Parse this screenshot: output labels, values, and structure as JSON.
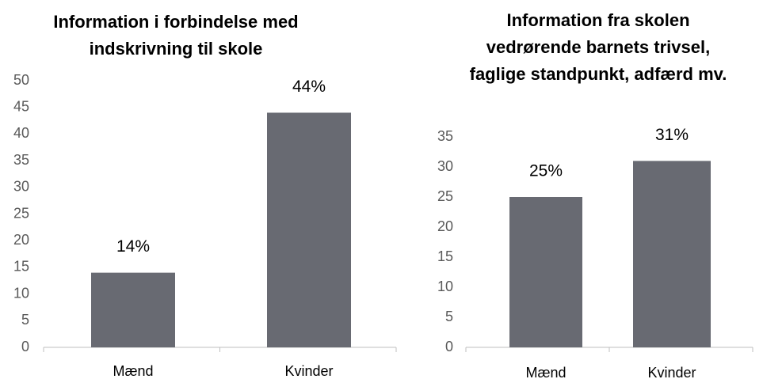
{
  "chart_data": [
    {
      "type": "bar",
      "title": "Information i forbindelse med indskrivning til skole",
      "categories": [
        "Mænd",
        "Kvinder"
      ],
      "values": [
        14,
        44
      ],
      "value_labels": [
        "14%",
        "44%"
      ],
      "color": "#686a72",
      "ylim": [
        0,
        50
      ],
      "yticks": [
        0,
        5,
        10,
        15,
        20,
        25,
        30,
        35,
        40,
        45,
        50
      ]
    },
    {
      "type": "bar",
      "title": "Information fra skolen vedrørende barnets trivsel, faglige standpunkt, adfærd mv.",
      "categories": [
        "Mænd",
        "Kvinder"
      ],
      "values": [
        25,
        31
      ],
      "value_labels": [
        "25%",
        "31%"
      ],
      "color": "#686a72",
      "ylim": [
        0,
        35
      ],
      "yticks": [
        0,
        5,
        10,
        15,
        20,
        25,
        30,
        35
      ]
    }
  ]
}
